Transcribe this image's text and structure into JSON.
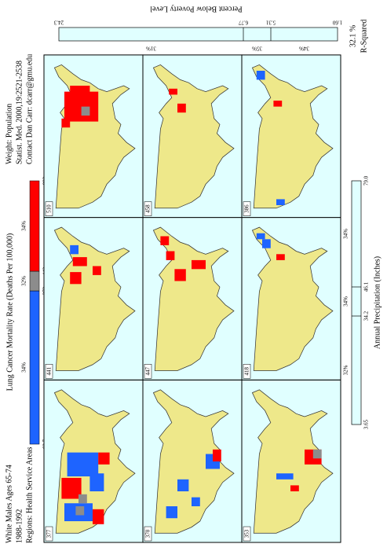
{
  "header": {
    "left": [
      "White Males Ages 65-74",
      "1988-1992",
      "Regions: Health Service Areas"
    ],
    "right": [
      "Weight: Population",
      "Statist. Med. 2000,19:2521-2538",
      "Contact Dan Carr: dcarr@gmu.edu"
    ]
  },
  "legend": {
    "title": "Lung Cancer Mortality Rate (Deaths Per 100,000)",
    "breaks": [
      "63.7",
      "373",
      "443",
      "893"
    ],
    "percents": [
      "34%",
      "32%",
      "34%"
    ]
  },
  "panels": [
    [
      "377",
      "441",
      "510"
    ],
    [
      "370",
      "447",
      "458"
    ],
    [
      "353",
      "418",
      "386"
    ]
  ],
  "precipitation": {
    "title": "Annual Precipitation (Inches)",
    "breaks": [
      "3.65",
      "34.2",
      "46.1",
      "79.0"
    ],
    "percents": [
      "32%",
      "34%",
      "34%"
    ]
  },
  "poverty": {
    "title": "Percent Below Poverty Level",
    "breaks": [
      "24.3",
      "6.77",
      "5.31",
      "1.60"
    ],
    "percents": [
      "31%",
      "35%",
      "34%"
    ]
  },
  "r_squared": {
    "value": "32.1 %",
    "label": "R-Squared"
  }
}
